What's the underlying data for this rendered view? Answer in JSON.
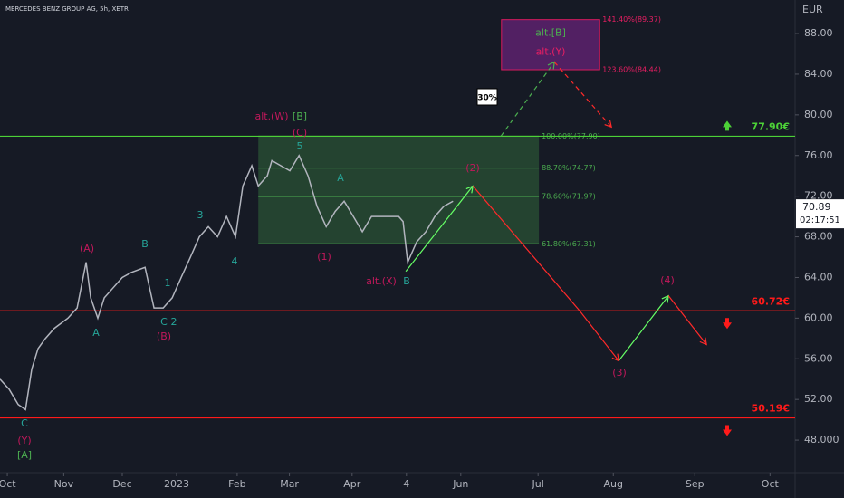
{
  "chart_data": {
    "type": "line",
    "title": "MERCEDES BENZ GROUP AG, 5h, XETR",
    "y_axis_label": "EUR",
    "color": "#b2b5be",
    "x": [
      -3.5,
      0.9,
      5.2,
      8.7,
      11.7,
      14.7,
      18.2,
      22.5,
      29,
      33.4,
      37.7,
      39.9,
      43.3,
      46.4,
      50.7,
      55,
      59.4,
      65.9,
      70.2,
      74.6,
      78.9,
      83.2,
      87.6,
      91.9,
      96.2,
      100.6,
      104.9,
      109.2,
      112.7,
      117,
      120.1,
      124.4,
      126.6,
      130.9,
      135.2,
      139.6,
      143.9,
      148.2,
      152.6,
      156.9,
      161.2,
      165.6,
      169.9,
      174.3,
      178.6,
      182.9,
      187.3,
      189.4,
      191.6,
      195.9,
      200.3,
      204.6,
      208.9,
      213.3
    ],
    "values": [
      54,
      53,
      51.5,
      51,
      55,
      57,
      58,
      59,
      60,
      61,
      65.5,
      62,
      60,
      62,
      63,
      64,
      64.5,
      65,
      61,
      61,
      62,
      64,
      66,
      68,
      69,
      68,
      70,
      68,
      73,
      75,
      73,
      74,
      75.5,
      75,
      74.5,
      76,
      74,
      71,
      69,
      70.5,
      71.5,
      70,
      68.5,
      70,
      70,
      70,
      70,
      69.5,
      65.5,
      67.5,
      68.5,
      70,
      71,
      71.5
    ],
    "xlim": [
      -3.5,
      377
    ],
    "xticks": [
      {
        "value": 0,
        "label": "Oct"
      },
      {
        "value": 27,
        "label": "Nov"
      },
      {
        "value": 55,
        "label": "Dec"
      },
      {
        "value": 81,
        "label": "2023"
      },
      {
        "value": 110,
        "label": "Feb"
      },
      {
        "value": 135,
        "label": "Mar"
      },
      {
        "value": 165,
        "label": "Apr"
      },
      {
        "value": 191,
        "label": "4"
      },
      {
        "value": 217,
        "label": "Jun"
      },
      {
        "value": 254,
        "label": "Jul"
      },
      {
        "value": 290,
        "label": "Aug"
      },
      {
        "value": 329,
        "label": "Sep"
      },
      {
        "value": 365,
        "label": "Oct"
      }
    ],
    "ylim": [
      44.8,
      91.3
    ],
    "yticks": [
      {
        "value": 48,
        "label": "48.000"
      },
      {
        "value": 52,
        "label": "52.00"
      },
      {
        "value": 56,
        "label": "56.00"
      },
      {
        "value": 60,
        "label": "60.00"
      },
      {
        "value": 64,
        "label": "64.00"
      },
      {
        "value": 68,
        "label": "68.00"
      },
      {
        "value": 72,
        "label": "72.00"
      },
      {
        "value": 76,
        "label": "76.00"
      },
      {
        "value": 80,
        "label": "80.00"
      },
      {
        "value": 84,
        "label": "84.00"
      },
      {
        "value": 88,
        "label": "88.00"
      }
    ],
    "levels": [
      {
        "value": 77.9,
        "label": "77.90€",
        "color": "#4cd137"
      },
      {
        "value": 60.72,
        "label": "60.72€",
        "color": "#ff1a1a"
      },
      {
        "value": 50.19,
        "label": "50.19€",
        "color": "#ff1a1a"
      }
    ],
    "fib_box": {
      "xrange": [
        120.1,
        254.4
      ],
      "color": "#4caf50",
      "levels": [
        {
          "value": 77.9,
          "label": "100.00%(77.90)"
        },
        {
          "value": 74.77,
          "label": "88.70%(74.77)"
        },
        {
          "value": 71.97,
          "label": "78.60%(71.97)"
        },
        {
          "value": 67.31,
          "label": "61.80%(67.31)"
        }
      ]
    },
    "target_box": {
      "xrange": [
        236.5,
        283.5
      ],
      "color": "#9c27b0",
      "title": "alt.[B]",
      "subtitle": "alt.(Y)",
      "levels": [
        {
          "value": 89.37,
          "label": "141.40%(89.37)"
        },
        {
          "value": 84.44,
          "label": "123.60%(84.44)"
        }
      ]
    },
    "projections": [
      {
        "color": "#66ff66",
        "dashed": false,
        "x": [
          190.7,
          222.8
        ],
        "y": [
          64.6,
          73.0
        ]
      },
      {
        "color": "#ff2a2a",
        "dashed": false,
        "x": [
          222.8,
          274,
          292.6
        ],
        "y": [
          73.0,
          60.7,
          55.8
        ]
      },
      {
        "color": "#66ff66",
        "dashed": false,
        "x": [
          292.6,
          316.4
        ],
        "y": [
          55.8,
          62.2
        ]
      },
      {
        "color": "#ff2a2a",
        "dashed": false,
        "x": [
          316.4,
          334.6
        ],
        "y": [
          62.2,
          57.4
        ]
      },
      {
        "color": "#4caf50",
        "dashed": true,
        "x": [
          236.2,
          261.8
        ],
        "y": [
          77.9,
          85.2
        ]
      },
      {
        "color": "#ff2a2a",
        "dashed": true,
        "x": [
          261.8,
          289.1
        ],
        "y": [
          85.2,
          78.8
        ]
      }
    ],
    "probability": "30%",
    "current": {
      "value": 70.89,
      "label": "70.89",
      "timer": "02:17:51"
    },
    "wave_labels": [
      "C",
      "(Y)",
      "[A]",
      "(A)",
      "A",
      "B",
      "1",
      "C",
      "2",
      "(B)",
      "3",
      "4",
      "alt.(W)",
      "[B]",
      "(C)",
      "5",
      "A",
      "(1)",
      "alt.(X)",
      "B",
      "(2)",
      "(4)",
      "(3)"
    ]
  }
}
